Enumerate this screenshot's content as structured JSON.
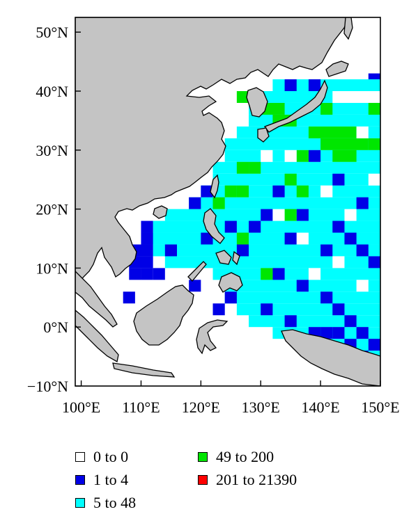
{
  "map": {
    "x_ticks": [
      "100°E",
      "110°E",
      "120°E",
      "130°E",
      "140°E",
      "150°E"
    ],
    "y_ticks": [
      "50°N",
      "40°N",
      "30°N",
      "20°N",
      "10°N",
      "0°N",
      "−10°N"
    ],
    "lon_range": [
      99,
      150
    ],
    "lat_range": [
      -10,
      52.5
    ],
    "land_color": "#c4c4c4",
    "ocean_color": "#ffffff"
  },
  "legend": {
    "items": [
      {
        "label": "0 to 0",
        "color": "#ffffff"
      },
      {
        "label": "1 to 4",
        "color": "#0000e6"
      },
      {
        "label": "5 to 48",
        "color": "#00ffff"
      },
      {
        "label": "49 to 200",
        "color": "#00e600"
      },
      {
        "label": "201 to 21390",
        "color": "#ff0000"
      }
    ]
  },
  "chart_data": {
    "type": "heatmap",
    "categories": [
      "0 to 0",
      "1 to 4",
      "5 to 48",
      "49 to 200",
      "201 to 21390"
    ],
    "cells": {
      "cyan": [
        [
          132,
          40,
          150,
          42
        ],
        [
          130,
          38,
          142,
          40
        ],
        [
          128,
          36,
          150,
          38
        ],
        [
          128,
          34,
          150,
          36
        ],
        [
          126,
          32,
          150,
          34
        ],
        [
          124,
          30,
          150,
          32
        ],
        [
          124,
          28,
          150,
          30
        ],
        [
          122,
          26,
          150,
          28
        ],
        [
          122,
          24,
          150,
          26
        ],
        [
          120,
          22,
          150,
          24
        ],
        [
          118,
          20,
          150,
          22
        ],
        [
          114,
          18,
          150,
          20
        ],
        [
          112,
          16,
          150,
          18
        ],
        [
          110,
          14,
          150,
          16
        ],
        [
          112,
          12,
          150,
          14
        ],
        [
          114,
          10,
          150,
          12
        ],
        [
          122,
          8,
          150,
          10
        ],
        [
          124,
          6,
          150,
          8
        ],
        [
          124,
          4,
          150,
          6
        ],
        [
          126,
          2,
          150,
          4
        ],
        [
          128,
          0,
          150,
          2
        ],
        [
          132,
          -2,
          150,
          0
        ],
        [
          140,
          -4,
          150,
          -2
        ],
        [
          144,
          -6,
          150,
          -4
        ]
      ],
      "blue": [
        [
          138,
          40,
          140,
          42
        ],
        [
          134,
          40,
          136,
          42
        ],
        [
          148,
          42,
          150,
          43
        ],
        [
          150,
          42,
          151,
          43
        ],
        [
          110,
          16,
          112,
          18
        ],
        [
          110,
          14,
          112,
          16
        ],
        [
          108,
          12,
          112,
          14
        ],
        [
          108,
          10,
          112,
          12
        ],
        [
          108,
          8,
          110,
          10
        ],
        [
          110,
          8,
          112,
          10
        ],
        [
          107,
          4,
          109,
          6
        ],
        [
          112,
          8,
          114,
          10
        ],
        [
          118,
          20,
          120,
          22
        ],
        [
          120,
          22,
          122,
          24
        ],
        [
          124,
          16,
          126,
          18
        ],
        [
          126,
          12,
          128,
          14
        ],
        [
          128,
          16,
          130,
          18
        ],
        [
          130,
          18,
          132,
          20
        ],
        [
          134,
          14,
          136,
          16
        ],
        [
          136,
          18,
          138,
          20
        ],
        [
          142,
          16,
          144,
          18
        ],
        [
          144,
          14,
          146,
          16
        ],
        [
          146,
          12,
          148,
          14
        ],
        [
          148,
          10,
          150,
          12
        ],
        [
          132,
          8,
          134,
          10
        ],
        [
          136,
          6,
          138,
          8
        ],
        [
          140,
          4,
          142,
          6
        ],
        [
          142,
          2,
          144,
          4
        ],
        [
          144,
          0,
          146,
          2
        ],
        [
          146,
          -2,
          148,
          0
        ],
        [
          130,
          2,
          132,
          4
        ],
        [
          134,
          0,
          136,
          2
        ],
        [
          138,
          -2,
          140,
          0
        ],
        [
          140,
          -2,
          142,
          0
        ],
        [
          142,
          -2,
          144,
          0
        ],
        [
          144,
          -4,
          146,
          -2
        ],
        [
          148,
          -4,
          150,
          -2
        ],
        [
          146,
          -6,
          148,
          -4
        ],
        [
          122,
          2,
          124,
          4
        ],
        [
          124,
          4,
          126,
          6
        ],
        [
          118,
          6,
          120,
          8
        ],
        [
          120,
          14,
          122,
          16
        ],
        [
          114,
          12,
          116,
          14
        ],
        [
          138,
          28,
          140,
          30
        ],
        [
          142,
          24,
          144,
          26
        ],
        [
          146,
          20,
          148,
          22
        ],
        [
          132,
          22,
          134,
          24
        ],
        [
          140,
          12,
          142,
          14
        ]
      ],
      "green": [
        [
          130,
          36,
          134,
          38
        ],
        [
          132,
          34,
          136,
          36
        ],
        [
          126,
          38,
          128,
          40
        ],
        [
          138,
          32,
          146,
          34
        ],
        [
          140,
          30,
          148,
          32
        ],
        [
          142,
          28,
          146,
          30
        ],
        [
          136,
          28,
          138,
          30
        ],
        [
          126,
          26,
          128,
          28
        ],
        [
          128,
          26,
          130,
          28
        ],
        [
          124,
          22,
          126,
          24
        ],
        [
          126,
          22,
          128,
          24
        ],
        [
          122,
          20,
          124,
          22
        ],
        [
          134,
          24,
          136,
          26
        ],
        [
          136,
          22,
          138,
          24
        ],
        [
          134,
          18,
          136,
          20
        ],
        [
          140,
          36,
          142,
          38
        ],
        [
          148,
          30,
          150,
          32
        ],
        [
          148,
          36,
          150,
          38
        ],
        [
          126,
          14,
          128,
          16
        ],
        [
          130,
          8,
          132,
          10
        ]
      ],
      "white": [
        [
          134,
          28,
          136,
          30
        ],
        [
          146,
          32,
          148,
          34
        ],
        [
          140,
          22,
          142,
          24
        ],
        [
          136,
          14,
          138,
          16
        ],
        [
          146,
          6,
          148,
          8
        ],
        [
          142,
          10,
          144,
          12
        ],
        [
          138,
          8,
          140,
          10
        ],
        [
          132,
          18,
          134,
          20
        ],
        [
          148,
          24,
          150,
          26
        ],
        [
          144,
          18,
          146,
          20
        ],
        [
          130,
          28,
          132,
          30
        ]
      ]
    }
  }
}
